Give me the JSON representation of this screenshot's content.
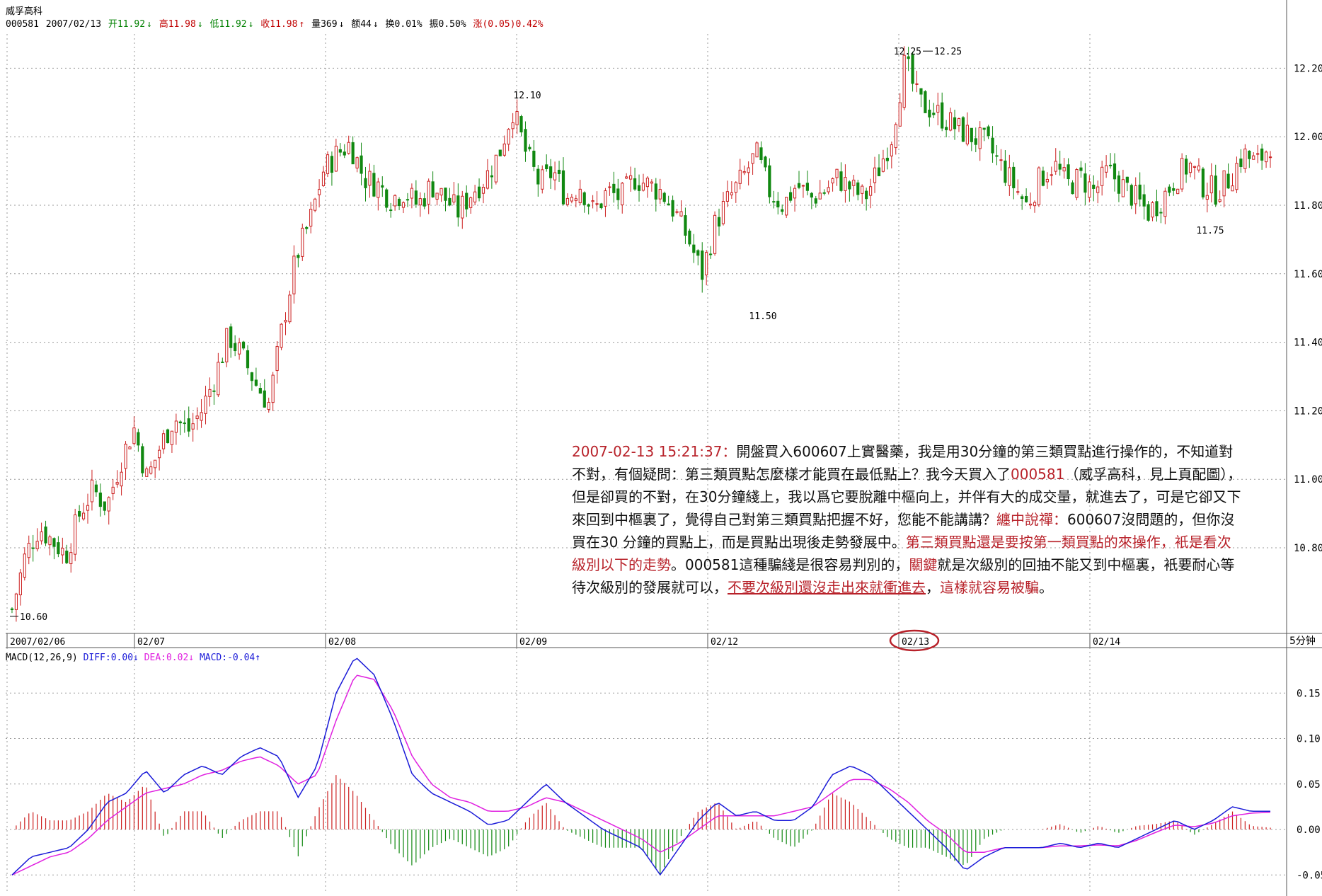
{
  "header": {
    "name": "威孚高科",
    "code": "000581",
    "date": "2007/02/13",
    "open": "开11.92",
    "high": "高11.98",
    "low": "低11.92",
    "close": "收11.98",
    "volume": "量369",
    "amount": "额44",
    "turnover": "换0.01%",
    "amplitude": "振0.50%",
    "change": "涨(0.05)0.42%"
  },
  "chart_data": [
    {
      "type": "candlestick",
      "title": "威孚高科 000581",
      "period": "5分钟",
      "ylim": [
        10.55,
        12.3
      ],
      "yticks": [
        "12.20",
        "12.00",
        "11.80",
        "11.60",
        "11.40",
        "11.20",
        "11.00",
        "10.80"
      ],
      "date_labels": [
        "2007/02/06",
        "02/07",
        "02/08",
        "02/09",
        "02/12",
        "02/13",
        "02/14"
      ],
      "annotations": [
        "10.60",
        "12.10",
        "11.50",
        "12.25",
        "12.25",
        "11.75"
      ],
      "approx_close_path": [
        10.62,
        10.78,
        10.86,
        10.82,
        10.78,
        10.9,
        10.97,
        10.92,
        11.05,
        11.15,
        11.0,
        11.1,
        11.18,
        11.14,
        11.2,
        11.3,
        11.42,
        11.36,
        11.28,
        11.22,
        11.45,
        11.65,
        11.75,
        11.9,
        11.95,
        11.98,
        11.88,
        11.86,
        11.82,
        11.84,
        11.8,
        11.86,
        11.82,
        11.78,
        11.84,
        11.88,
        11.95,
        12.08,
        11.95,
        11.86,
        11.9,
        11.82,
        11.86,
        11.78,
        11.84,
        11.82,
        11.88,
        11.86,
        11.84,
        11.78,
        11.7,
        11.6,
        11.75,
        11.82,
        11.88,
        11.95,
        11.84,
        11.8,
        11.86,
        11.82,
        11.84,
        11.88,
        11.85,
        11.82,
        11.9,
        12.0,
        12.22,
        12.1,
        12.08,
        12.05,
        12.02,
        12.0,
        11.98,
        11.92,
        11.86,
        11.8,
        11.88,
        11.92,
        11.86,
        11.88,
        11.84,
        11.9,
        11.86,
        11.82,
        11.78,
        11.82,
        11.88,
        11.92,
        11.86,
        11.84,
        11.88,
        11.95,
        11.92,
        11.98
      ]
    },
    {
      "type": "line",
      "title": "MACD(12,26,9)",
      "legend": [
        "DIFF:0.00",
        "DEA:0.02",
        "MACD:-0.04"
      ],
      "ylim": [
        -0.07,
        0.2
      ],
      "yticks": [
        "0.15",
        "0.10",
        "0.05",
        "0.00",
        "-0.05"
      ],
      "series": [
        {
          "name": "DIFF",
          "color": "#1a1ad8",
          "values": [
            -0.05,
            -0.03,
            -0.025,
            -0.02,
            0.0,
            0.03,
            0.04,
            0.065,
            0.04,
            0.06,
            0.07,
            0.06,
            0.08,
            0.09,
            0.08,
            0.035,
            0.07,
            0.15,
            0.19,
            0.17,
            0.12,
            0.06,
            0.04,
            0.03,
            0.02,
            0.005,
            0.01,
            0.03,
            0.05,
            0.03,
            0.015,
            0.0,
            -0.01,
            -0.02,
            -0.05,
            -0.02,
            0.01,
            0.03,
            0.015,
            0.02,
            0.01,
            0.01,
            0.025,
            0.06,
            0.07,
            0.06,
            0.04,
            0.02,
            0.0,
            -0.02,
            -0.045,
            -0.03,
            -0.02,
            -0.02,
            -0.02,
            -0.015,
            -0.02,
            -0.015,
            -0.02,
            -0.01,
            0.0,
            0.01,
            0.0,
            0.01,
            0.025,
            0.02,
            0.02
          ]
        },
        {
          "name": "DEA",
          "color": "#e020e0",
          "values": [
            -0.05,
            -0.04,
            -0.03,
            -0.025,
            -0.01,
            0.01,
            0.025,
            0.04,
            0.045,
            0.05,
            0.06,
            0.065,
            0.075,
            0.08,
            0.07,
            0.05,
            0.06,
            0.12,
            0.17,
            0.165,
            0.13,
            0.08,
            0.05,
            0.035,
            0.03,
            0.02,
            0.02,
            0.025,
            0.035,
            0.03,
            0.02,
            0.01,
            0.0,
            -0.01,
            -0.025,
            -0.015,
            0.0,
            0.015,
            0.015,
            0.015,
            0.015,
            0.02,
            0.025,
            0.04,
            0.055,
            0.055,
            0.045,
            0.03,
            0.01,
            -0.005,
            -0.025,
            -0.025,
            -0.02,
            -0.02,
            -0.02,
            -0.018,
            -0.018,
            -0.017,
            -0.018,
            -0.012,
            -0.003,
            0.005,
            0.003,
            0.007,
            0.015,
            0.018,
            0.019
          ]
        }
      ]
    }
  ],
  "note": {
    "t1": "2007-02-13 15:21:37：",
    "t2": "開盤買入600607上實醫藥，我是用30分鐘的第三類買點進行操作的，不知道對不對，有個疑問：第三類買點怎麼樣才能買在最低點上？我今天買入了",
    "t3": "000581",
    "t4": "（威孚高科，見上頁配圖），但是卻買的不對，在30分鐘綫上，我以爲它要脫離中樞向上，并伴有大的成交量，就進去了，可是它卻又下來回到中樞裏了，覺得自己對第三類買點把握不好，您能不能講講？",
    "t5": "纏中說禪：",
    "t6": "600607沒問題的，但你沒買在30 分鐘的買點上，而是買點出現後走勢發展中。",
    "t7": "第三類買點還是要按第一類買點的來操作，衹是看次級別以下的走勢",
    "t8": "。000581這種騙綫是很容易判別的，",
    "t9": "關鍵",
    "t10": "就是次級別的回抽不能又到中樞裏，衹要耐心等待次級別的發展就可以，",
    "t11": "不要次級別還沒走出來就衝進去",
    "t12": "，",
    "t13": "這樣就容易被騙",
    "t14": "。"
  },
  "colors": {
    "up": "#cc2020",
    "down": "#118811",
    "grid": "#9a9a9a",
    "diff": "#1a1ad8",
    "dea": "#e020e0"
  }
}
